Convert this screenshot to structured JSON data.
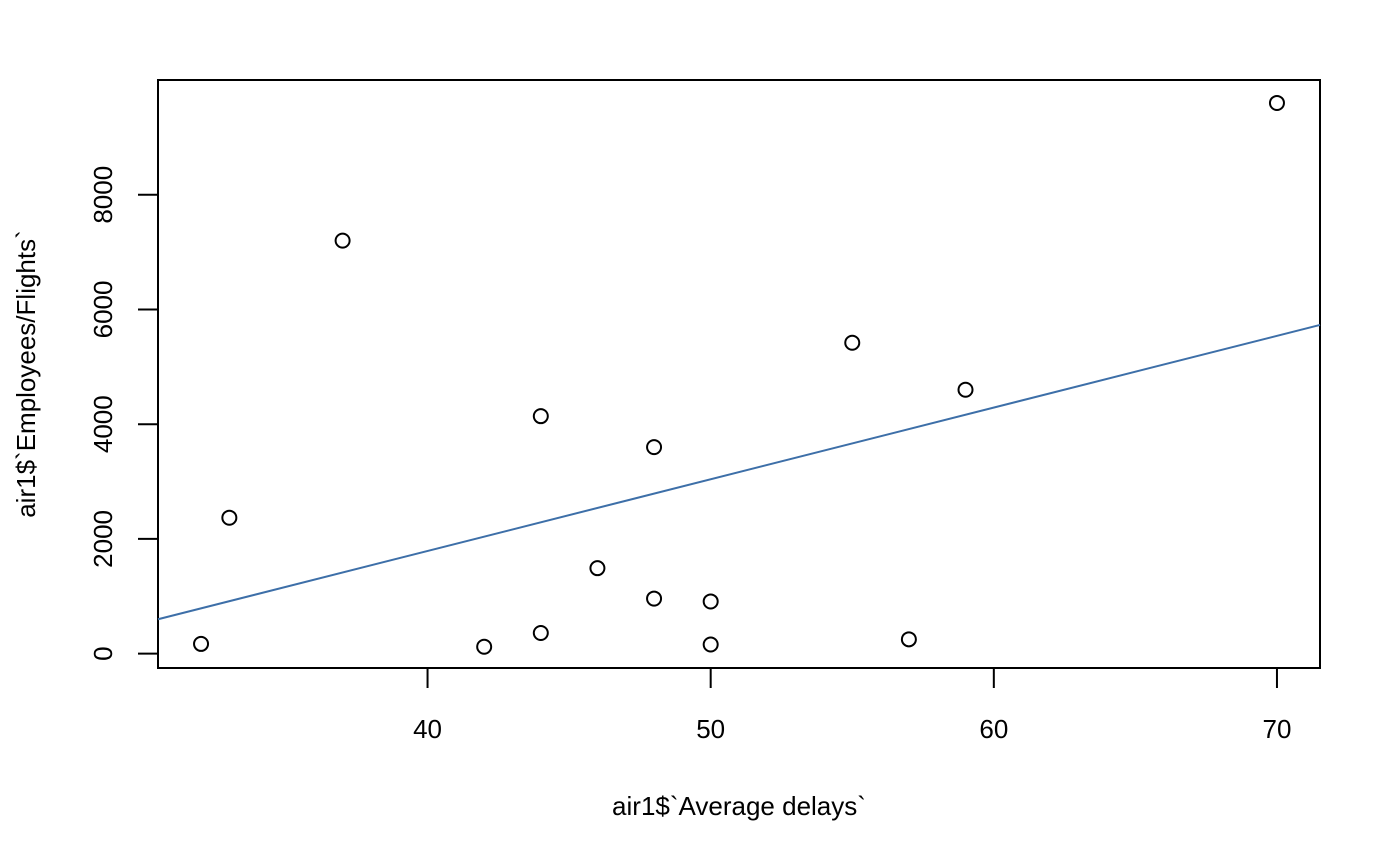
{
  "chart_data": {
    "type": "scatter",
    "title": "",
    "xlabel": "air1$`Average delays`",
    "ylabel": "air1$`Employees/Flights`",
    "xlim": [
      30.48,
      71.52
    ],
    "ylim": [
      -250,
      10000
    ],
    "x_ticks": [
      40,
      50,
      60,
      70
    ],
    "y_ticks": [
      0,
      2000,
      4000,
      6000,
      8000
    ],
    "grid": false,
    "point_style": "open-circle",
    "points": [
      {
        "x": 32,
        "y": 170
      },
      {
        "x": 33,
        "y": 2370
      },
      {
        "x": 37,
        "y": 7200
      },
      {
        "x": 42,
        "y": 120
      },
      {
        "x": 44,
        "y": 360
      },
      {
        "x": 44,
        "y": 4140
      },
      {
        "x": 46,
        "y": 1490
      },
      {
        "x": 48,
        "y": 960
      },
      {
        "x": 48,
        "y": 3600
      },
      {
        "x": 50,
        "y": 910
      },
      {
        "x": 50,
        "y": 160
      },
      {
        "x": 55,
        "y": 5420
      },
      {
        "x": 57,
        "y": 250
      },
      {
        "x": 59,
        "y": 4600
      },
      {
        "x": 70,
        "y": 9600
      }
    ],
    "fit_line": {
      "intercept": -3210,
      "slope": 125,
      "color": "#3d6fa8"
    }
  }
}
